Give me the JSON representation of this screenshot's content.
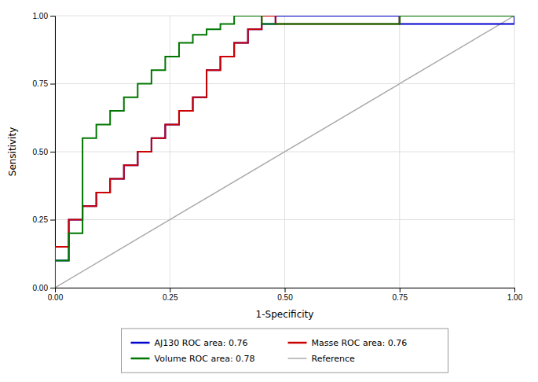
{
  "chart_data": {
    "type": "line",
    "xlabel": "1-Specificity",
    "ylabel": "Sensitivity",
    "xlim": [
      0.0,
      1.0
    ],
    "ylim": [
      0.0,
      1.0
    ],
    "xticks": [
      {
        "value": 0.0,
        "label": "0.00"
      },
      {
        "value": 0.25,
        "label": "0.25"
      },
      {
        "value": 0.5,
        "label": "0.50"
      },
      {
        "value": 0.75,
        "label": "0.75"
      },
      {
        "value": 1.0,
        "label": "1.00"
      }
    ],
    "yticks": [
      {
        "value": 0.0,
        "label": "0.00"
      },
      {
        "value": 0.25,
        "label": "0.25"
      },
      {
        "value": 0.5,
        "label": "0.50"
      },
      {
        "value": 0.75,
        "label": "0.75"
      },
      {
        "value": 1.0,
        "label": "1.00"
      }
    ],
    "grid": true,
    "legend": "bottom",
    "series": [
      {
        "name": "AJ130 ROC area: 0.76",
        "type": "step",
        "color": "#0000cc",
        "x": [
          0.0,
          0.0,
          0.0,
          0.03,
          0.03,
          0.06,
          0.06,
          0.09,
          0.09,
          0.12,
          0.12,
          0.15,
          0.15,
          0.18,
          0.18,
          0.21,
          0.21,
          0.24,
          0.24,
          0.27,
          0.27,
          0.3,
          0.3,
          0.33,
          0.33,
          0.36,
          0.36,
          0.39,
          0.39,
          0.42,
          0.42,
          0.45,
          0.45,
          0.48,
          0.48,
          0.75,
          0.75,
          1.0
        ],
        "values": [
          0.0,
          0.05,
          0.1,
          0.1,
          0.25,
          0.25,
          0.3,
          0.3,
          0.35,
          0.35,
          0.4,
          0.4,
          0.45,
          0.45,
          0.5,
          0.5,
          0.55,
          0.55,
          0.6,
          0.6,
          0.65,
          0.65,
          0.7,
          0.7,
          0.8,
          0.8,
          0.85,
          0.85,
          0.9,
          0.9,
          0.95,
          0.95,
          0.97,
          0.97,
          1.0,
          1.0,
          0.97,
          1.0
        ]
      },
      {
        "name": "Masse ROC area: 0.76",
        "type": "step",
        "color": "#cc0000",
        "x": [
          0.0,
          0.0,
          0.03,
          0.03,
          0.06,
          0.06,
          0.09,
          0.09,
          0.12,
          0.12,
          0.15,
          0.15,
          0.18,
          0.18,
          0.21,
          0.21,
          0.24,
          0.24,
          0.27,
          0.27,
          0.3,
          0.3,
          0.33,
          0.33,
          0.36,
          0.36,
          0.39,
          0.39,
          0.42,
          0.42,
          0.45,
          0.45,
          0.48,
          0.48,
          0.75,
          0.75,
          1.0
        ],
        "values": [
          0.0,
          0.15,
          0.15,
          0.25,
          0.25,
          0.3,
          0.3,
          0.35,
          0.35,
          0.4,
          0.4,
          0.45,
          0.45,
          0.5,
          0.5,
          0.55,
          0.55,
          0.6,
          0.6,
          0.65,
          0.65,
          0.7,
          0.7,
          0.8,
          0.8,
          0.85,
          0.85,
          0.9,
          0.9,
          0.95,
          0.95,
          1.0,
          1.0,
          0.97,
          0.97,
          1.0,
          1.0
        ]
      },
      {
        "name": "Volume ROC area: 0.78",
        "type": "step",
        "color": "#007700",
        "x": [
          0.0,
          0.0,
          0.03,
          0.03,
          0.06,
          0.06,
          0.09,
          0.09,
          0.12,
          0.12,
          0.15,
          0.15,
          0.18,
          0.18,
          0.21,
          0.21,
          0.24,
          0.24,
          0.27,
          0.27,
          0.3,
          0.3,
          0.33,
          0.33,
          0.36,
          0.36,
          0.39,
          0.39,
          0.45,
          0.45,
          0.75,
          0.75,
          1.0
        ],
        "values": [
          0.0,
          0.1,
          0.1,
          0.2,
          0.2,
          0.55,
          0.55,
          0.6,
          0.6,
          0.65,
          0.65,
          0.7,
          0.7,
          0.75,
          0.75,
          0.8,
          0.8,
          0.85,
          0.85,
          0.9,
          0.9,
          0.93,
          0.93,
          0.95,
          0.95,
          0.97,
          0.97,
          1.0,
          1.0,
          0.97,
          0.97,
          1.0,
          1.0
        ]
      },
      {
        "name": "Reference",
        "type": "line",
        "color": "#aaaaaa",
        "x": [
          0,
          1
        ],
        "values": [
          0,
          1
        ]
      }
    ]
  }
}
